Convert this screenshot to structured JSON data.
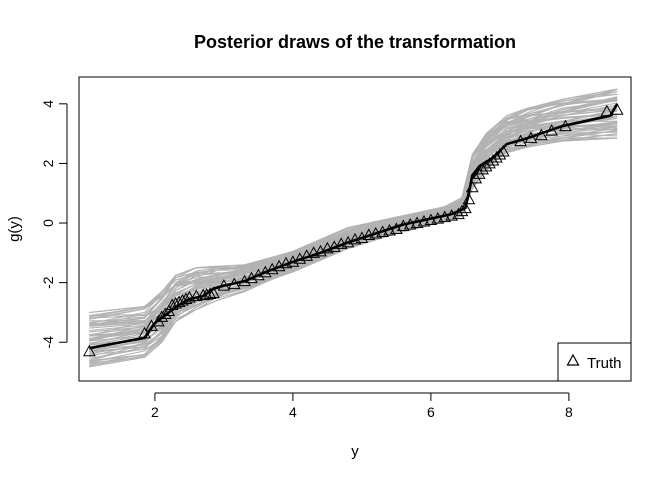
{
  "chart_data": {
    "type": "line",
    "title": "Posterior draws of the transformation",
    "xlabel": "y",
    "ylabel": "g(y)",
    "xlim": [
      0.9,
      8.9
    ],
    "ylim": [
      -5.3,
      4.9
    ],
    "xticks": [
      2,
      4,
      6,
      8
    ],
    "yticks": [
      -4,
      -2,
      0,
      2,
      4
    ],
    "xtick_labels": [
      "2",
      "4",
      "6",
      "8"
    ],
    "ytick_labels": [
      "-4",
      "-2",
      "0",
      "2",
      "4"
    ],
    "grid": false,
    "legend": {
      "position": "bottom-right",
      "entries": [
        {
          "label": "Truth",
          "marker": "triangle-open"
        }
      ]
    },
    "colors": {
      "draws": "#b3b3b3",
      "mean": "#000000",
      "truth": "#000000"
    },
    "posterior_band": {
      "x": [
        1.05,
        1.85,
        2.1,
        2.3,
        2.6,
        2.9,
        3.3,
        4.0,
        4.8,
        5.5,
        6.2,
        6.45,
        6.6,
        6.8,
        7.1,
        7.4,
        7.9,
        8.7
      ],
      "lower": [
        -4.85,
        -4.5,
        -4.0,
        -3.3,
        -2.9,
        -2.6,
        -2.3,
        -1.65,
        -0.85,
        -0.35,
        0.05,
        0.25,
        1.15,
        1.75,
        2.35,
        2.55,
        2.75,
        2.85
      ],
      "upper": [
        -3.0,
        -2.8,
        -2.3,
        -1.75,
        -1.5,
        -1.45,
        -1.4,
        -0.95,
        -0.15,
        0.2,
        0.55,
        0.85,
        2.3,
        3.0,
        3.6,
        3.85,
        4.15,
        4.5
      ]
    },
    "series": [
      {
        "style": "mean-line",
        "x": [
          1.05,
          1.85,
          2.0,
          2.2,
          2.35,
          2.5,
          2.7,
          2.85,
          3.0,
          3.3,
          3.6,
          4.0,
          4.4,
          4.8,
          5.2,
          5.6,
          6.0,
          6.3,
          6.5,
          6.55,
          6.6,
          6.7,
          6.9,
          7.1,
          7.4,
          7.9,
          8.6,
          8.7
        ],
        "y": [
          -4.2,
          -3.85,
          -3.35,
          -3.0,
          -2.75,
          -2.55,
          -2.45,
          -2.2,
          -2.1,
          -1.95,
          -1.65,
          -1.3,
          -1.0,
          -0.65,
          -0.35,
          -0.05,
          0.15,
          0.3,
          0.5,
          1.0,
          1.6,
          1.9,
          2.2,
          2.65,
          2.85,
          3.25,
          3.6,
          4.0
        ]
      },
      {
        "style": "truth-points",
        "x": [
          1.05,
          1.85,
          1.95,
          2.05,
          2.1,
          2.15,
          2.2,
          2.25,
          2.3,
          2.35,
          2.4,
          2.45,
          2.5,
          2.6,
          2.7,
          2.75,
          2.8,
          2.85,
          3.0,
          3.15,
          3.3,
          3.4,
          3.5,
          3.6,
          3.7,
          3.8,
          3.9,
          4.0,
          4.1,
          4.2,
          4.3,
          4.4,
          4.5,
          4.6,
          4.7,
          4.8,
          4.9,
          5.0,
          5.1,
          5.2,
          5.3,
          5.4,
          5.5,
          5.6,
          5.7,
          5.8,
          5.9,
          6.0,
          6.1,
          6.2,
          6.3,
          6.4,
          6.45,
          6.5,
          6.55,
          6.6,
          6.65,
          6.7,
          6.75,
          6.8,
          6.85,
          6.9,
          6.95,
          7.0,
          7.05,
          7.3,
          7.45,
          7.6,
          7.75,
          7.95,
          8.55,
          8.7
        ],
        "y": [
          -4.3,
          -3.7,
          -3.45,
          -3.3,
          -3.15,
          -3.05,
          -2.95,
          -2.75,
          -2.7,
          -2.65,
          -2.6,
          -2.55,
          -2.5,
          -2.45,
          -2.42,
          -2.4,
          -2.38,
          -2.35,
          -2.1,
          -2.05,
          -1.95,
          -1.85,
          -1.75,
          -1.65,
          -1.55,
          -1.45,
          -1.35,
          -1.3,
          -1.2,
          -1.1,
          -1.0,
          -0.95,
          -0.85,
          -0.8,
          -0.7,
          -0.65,
          -0.55,
          -0.5,
          -0.4,
          -0.35,
          -0.3,
          -0.25,
          -0.2,
          -0.1,
          -0.05,
          0.0,
          0.05,
          0.1,
          0.15,
          0.2,
          0.25,
          0.3,
          0.4,
          0.5,
          0.8,
          1.2,
          1.5,
          1.65,
          1.8,
          1.9,
          2.0,
          2.1,
          2.2,
          2.3,
          2.4,
          2.75,
          2.85,
          2.95,
          3.1,
          3.25,
          3.75,
          3.8
        ]
      }
    ]
  }
}
